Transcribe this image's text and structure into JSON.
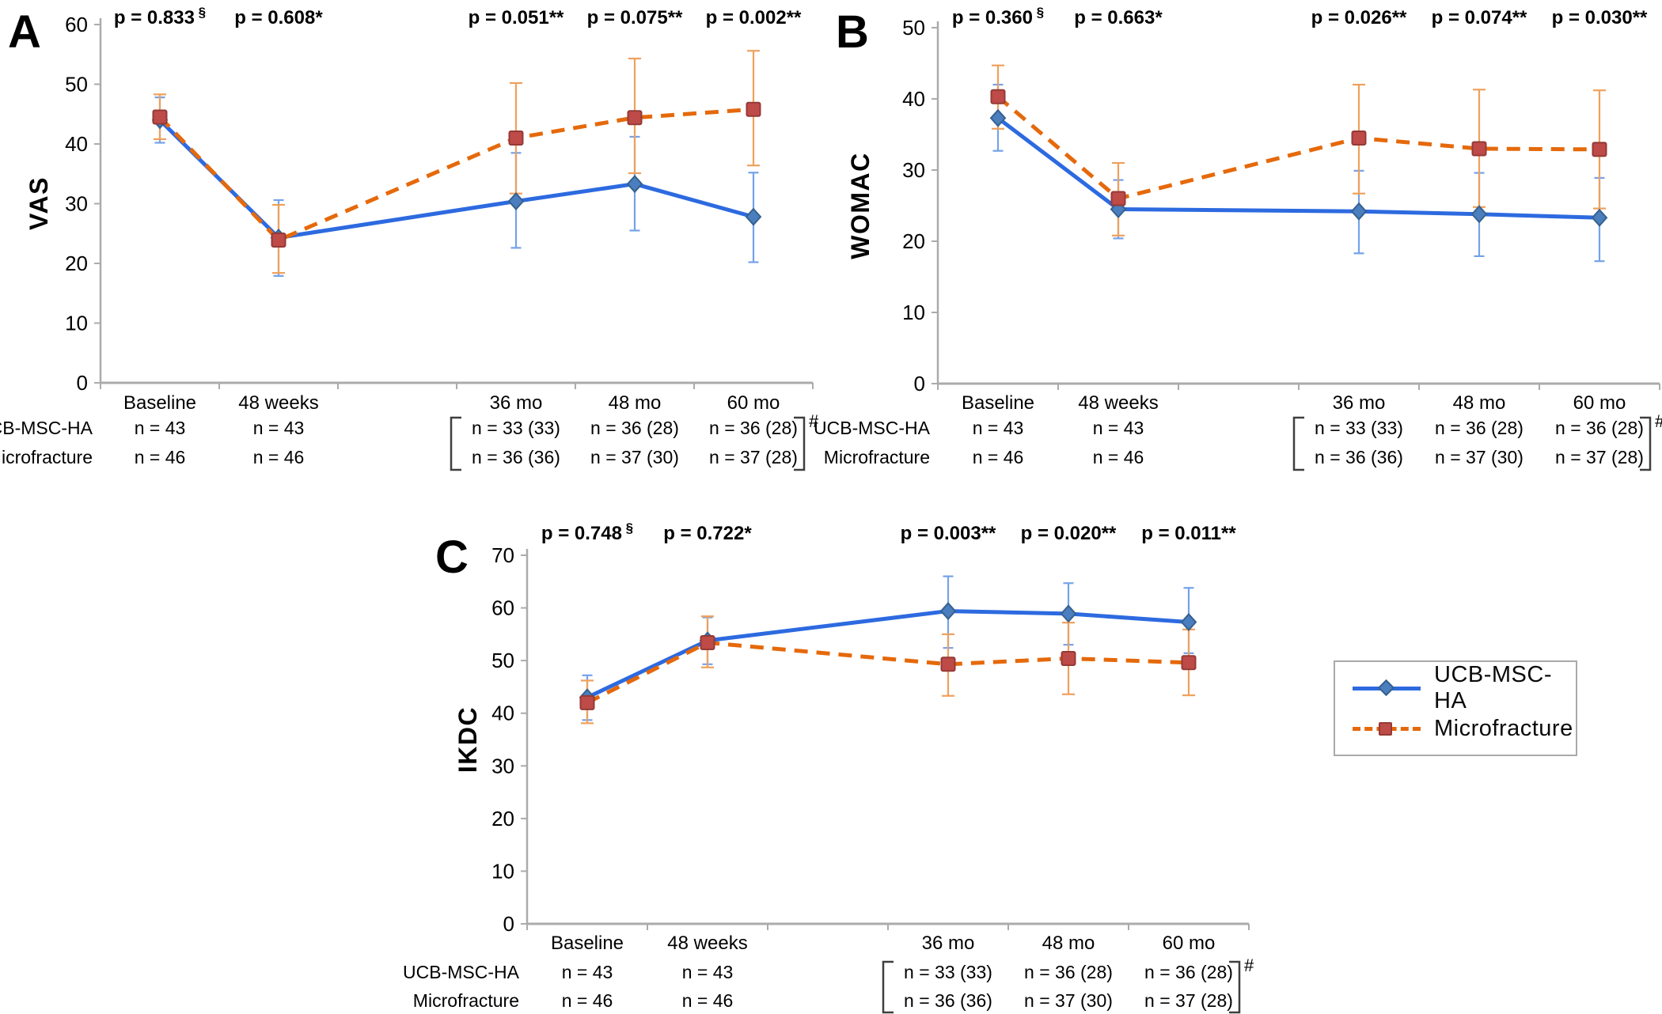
{
  "figure": {
    "background": "#ffffff"
  },
  "colors": {
    "ucb_line": "#2D6AE0",
    "ucb_marker": "#4B7EBE",
    "ucb_marker_edge": "#35618F",
    "ucb_error": "#74A2EA",
    "mfx_line": "#E5690B",
    "mfx_marker": "#BE4B48",
    "mfx_marker_edge": "#943A37",
    "mfx_error": "#EFA05C",
    "axis": "#ABABAB",
    "text": "#000000",
    "bracket": "#3F3F3F"
  },
  "legend": {
    "items": [
      {
        "label": "UCB-MSC-HA",
        "series": "ucb"
      },
      {
        "label": "Microfracture",
        "series": "mfx"
      }
    ]
  },
  "chart_data": [
    {
      "panel_label": "A",
      "type": "line",
      "ylabel": "VAS",
      "ylim": [
        0,
        60
      ],
      "ytick_step": 10,
      "categories": [
        "Baseline",
        "48 weeks",
        "36 mo",
        "48 mo",
        "60 mo"
      ],
      "p_values": [
        {
          "text": "p = 0.833",
          "sup": "§"
        },
        {
          "text": "p = 0.608*"
        },
        {
          "text": "p = 0.051**"
        },
        {
          "text": "p = 0.075**"
        },
        {
          "text": "p = 0.002**"
        }
      ],
      "series": [
        {
          "name": "UCB-MSC-HA",
          "key": "ucb",
          "values": [
            44.0,
            24.3,
            30.4,
            33.3,
            27.8
          ],
          "err_low": [
            40.2,
            17.9,
            22.6,
            25.5,
            20.2
          ],
          "err_high": [
            47.8,
            30.6,
            38.5,
            41.2,
            35.2
          ]
        },
        {
          "name": "Microfracture",
          "key": "mfx",
          "values": [
            44.5,
            23.9,
            41.0,
            44.4,
            45.8
          ],
          "err_low": [
            40.8,
            18.4,
            31.7,
            35.1,
            36.4
          ],
          "err_high": [
            48.3,
            29.8,
            50.2,
            54.3,
            55.6
          ]
        }
      ],
      "n_table": {
        "rows": [
          {
            "label": "UCB-MSC-HA",
            "values": [
              "n = 43",
              "n = 43",
              "n = 33 (33)",
              "n = 36 (28)",
              "n = 36 (28)"
            ]
          },
          {
            "label": "Microfracture",
            "values": [
              "n = 46",
              "n = 46",
              "n = 36 (36)",
              "n = 37 (30)",
              "n = 37 (28)"
            ]
          }
        ],
        "bracket_from": "36 mo",
        "bracket_to": "60 mo",
        "bracket_note": "#"
      }
    },
    {
      "panel_label": "B",
      "type": "line",
      "ylabel": "WOMAC",
      "ylim": [
        0,
        50
      ],
      "ytick_step": 10,
      "categories": [
        "Baseline",
        "48 weeks",
        "36 mo",
        "48 mo",
        "60 mo"
      ],
      "p_values": [
        {
          "text": "p = 0.360",
          "sup": "§"
        },
        {
          "text": "p = 0.663*"
        },
        {
          "text": "p = 0.026**"
        },
        {
          "text": "p = 0.074**"
        },
        {
          "text": "p = 0.030**"
        }
      ],
      "series": [
        {
          "name": "UCB-MSC-HA",
          "key": "ucb",
          "values": [
            37.3,
            24.5,
            24.2,
            23.8,
            23.3
          ],
          "err_low": [
            32.7,
            20.4,
            18.3,
            17.9,
            17.2
          ],
          "err_high": [
            42.0,
            28.6,
            29.9,
            29.6,
            28.9
          ]
        },
        {
          "name": "Microfracture",
          "key": "mfx",
          "values": [
            40.3,
            26.0,
            34.5,
            33.0,
            32.9
          ],
          "err_low": [
            35.8,
            20.8,
            26.7,
            24.8,
            24.6
          ],
          "err_high": [
            44.7,
            31.0,
            42.0,
            41.3,
            41.2
          ]
        }
      ],
      "n_table": {
        "rows": [
          {
            "label": "UCB-MSC-HA",
            "values": [
              "n = 43",
              "n = 43",
              "n = 33 (33)",
              "n = 36 (28)",
              "n = 36 (28)"
            ]
          },
          {
            "label": "Microfracture",
            "values": [
              "n = 46",
              "n = 46",
              "n = 36 (36)",
              "n = 37 (30)",
              "n = 37 (28)"
            ]
          }
        ],
        "bracket_from": "36 mo",
        "bracket_to": "60 mo",
        "bracket_note": "#"
      }
    },
    {
      "panel_label": "C",
      "type": "line",
      "ylabel": "IKDC",
      "ylim": [
        0,
        70
      ],
      "ytick_step": 10,
      "categories": [
        "Baseline",
        "48 weeks",
        "36 mo",
        "48 mo",
        "60 mo"
      ],
      "p_values": [
        {
          "text": "p = 0.748",
          "sup": "§"
        },
        {
          "text": "p = 0.722*"
        },
        {
          "text": "p = 0.003**"
        },
        {
          "text": "p = 0.020**"
        },
        {
          "text": "p = 0.011**"
        }
      ],
      "series": [
        {
          "name": "UCB-MSC-HA",
          "key": "ucb",
          "values": [
            43.0,
            53.8,
            59.4,
            58.9,
            57.3
          ],
          "err_low": [
            38.7,
            49.3,
            52.4,
            53.0,
            51.4
          ],
          "err_high": [
            47.2,
            58.2,
            66.0,
            64.7,
            63.8
          ]
        },
        {
          "name": "Microfracture",
          "key": "mfx",
          "values": [
            42.0,
            53.4,
            49.3,
            50.4,
            49.6
          ],
          "err_low": [
            38.1,
            48.7,
            43.3,
            43.6,
            43.4
          ],
          "err_high": [
            46.2,
            58.4,
            55.0,
            57.2,
            55.9
          ]
        }
      ],
      "n_table": {
        "rows": [
          {
            "label": "UCB-MSC-HA",
            "values": [
              "n = 43",
              "n = 43",
              "n = 33 (33)",
              "n = 36 (28)",
              "n = 36 (28)"
            ]
          },
          {
            "label": "Microfracture",
            "values": [
              "n = 46",
              "n = 46",
              "n = 36 (36)",
              "n = 37 (30)",
              "n = 37 (28)"
            ]
          }
        ],
        "bracket_from": "36 mo",
        "bracket_to": "60 mo",
        "bracket_note": "#"
      }
    }
  ]
}
